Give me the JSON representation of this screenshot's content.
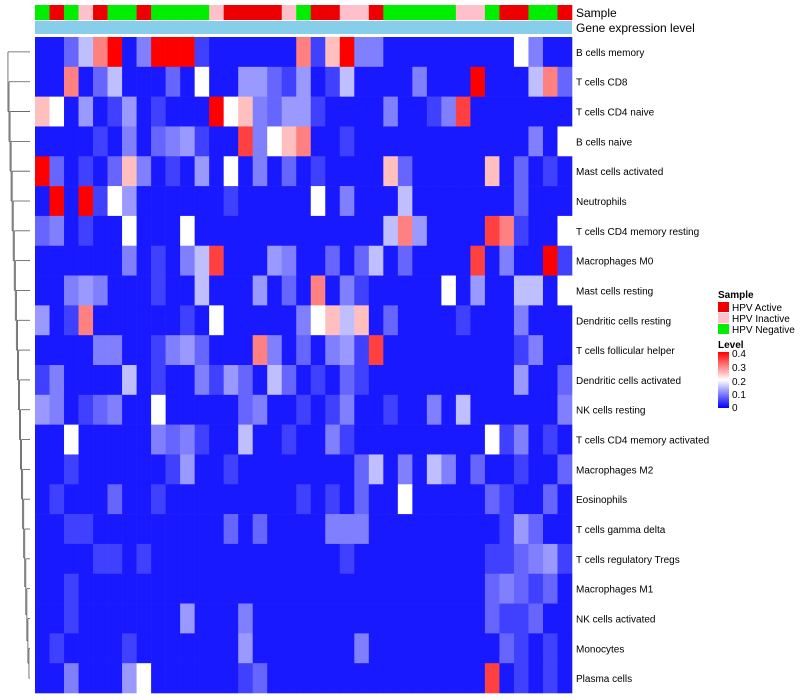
{
  "chart_data": {
    "type": "heatmap",
    "annotation_tracks": [
      "Sample",
      "Gene expression level"
    ],
    "legend": {
      "sample_title": "Sample",
      "sample_entries": [
        {
          "label": "HPV Active",
          "color": "#ee0000"
        },
        {
          "label": "HPV Inactive",
          "color": "#ffc0cb"
        },
        {
          "label": "HPV Negative",
          "color": "#00ee00"
        }
      ],
      "level_title": "Level",
      "level_ticks": [
        "0.4",
        "0.3",
        "0.2",
        "0.1",
        "0"
      ],
      "level_range": [
        0,
        0.4
      ]
    },
    "colors": {
      "low": "#0000ff",
      "mid": "#ffffff",
      "high": "#ff0000",
      "gene_bar": "#87ceeb"
    },
    "sample_groups": [
      2,
      0,
      2,
      1,
      0,
      2,
      2,
      0,
      2,
      2,
      2,
      2,
      1,
      0,
      0,
      0,
      0,
      1,
      2,
      0,
      0,
      1,
      1,
      0,
      2,
      2,
      2,
      2,
      2,
      1,
      1,
      2,
      0,
      0,
      2,
      2,
      0
    ],
    "rows": [
      "B cells memory",
      "T cells CD8",
      "T cells CD4 naive",
      "B cells naive",
      "Mast cells activated",
      "Neutrophils",
      "T cells CD4 memory resting",
      "Macrophages M0",
      "Mast cells resting",
      "Dendritic cells resting",
      "T cells follicular helper",
      "Dendritic cells activated",
      "NK cells resting",
      "T cells CD4 memory activated",
      "Macrophages M2",
      "Eosinophils",
      "T cells gamma delta",
      "T cells regulatory  Tregs",
      "Macrophages M1",
      "NK cells activated",
      "Monocytes",
      "Plasma cells"
    ],
    "values": [
      [
        0.02,
        0.02,
        0.08,
        0.15,
        0.3,
        0.4,
        0.02,
        0.1,
        0.4,
        0.4,
        0.4,
        0.05,
        0.02,
        0.02,
        0.02,
        0.02,
        0.02,
        0.02,
        0.3,
        0.05,
        0.25,
        0.4,
        0.1,
        0.1,
        0.02,
        0.02,
        0.02,
        0.02,
        0.02,
        0.02,
        0.02,
        0.02,
        0.02,
        0.2,
        0.1,
        0.02,
        0.02
      ],
      [
        0.02,
        0.02,
        0.3,
        0.02,
        0.08,
        0.15,
        0.02,
        0.02,
        0.02,
        0.08,
        0.02,
        0.2,
        0.02,
        0.02,
        0.12,
        0.12,
        0.08,
        0.05,
        0.12,
        0.02,
        0.05,
        0.15,
        0.02,
        0.02,
        0.02,
        0.02,
        0.1,
        0.02,
        0.02,
        0.02,
        0.4,
        0.02,
        0.02,
        0.02,
        0.15,
        0.3,
        0.08
      ],
      [
        0.25,
        0.2,
        0.02,
        0.12,
        0.02,
        0.05,
        0.12,
        0.02,
        0.05,
        0.02,
        0.02,
        0.02,
        0.4,
        0.2,
        0.25,
        0.1,
        0.08,
        0.12,
        0.12,
        0.05,
        0.02,
        0.02,
        0.02,
        0.02,
        0.1,
        0.02,
        0.02,
        0.05,
        0.1,
        0.35,
        0.02,
        0.02,
        0.02,
        0.02,
        0.02,
        0.02,
        0.02
      ],
      [
        0.02,
        0.02,
        0.02,
        0.02,
        0.05,
        0.02,
        0.1,
        0.02,
        0.08,
        0.1,
        0.12,
        0.05,
        0.02,
        0.02,
        0.35,
        0.1,
        0.2,
        0.25,
        0.3,
        0.02,
        0.02,
        0.05,
        0.02,
        0.02,
        0.02,
        0.02,
        0.02,
        0.02,
        0.02,
        0.02,
        0.02,
        0.02,
        0.02,
        0.02,
        0.1,
        0.02,
        0.2
      ],
      [
        0.4,
        0.08,
        0.02,
        0.05,
        0.02,
        0.08,
        0.25,
        0.1,
        0.02,
        0.05,
        0.02,
        0.12,
        0.02,
        0.2,
        0.02,
        0.1,
        0.02,
        0.08,
        0.02,
        0.05,
        0.02,
        0.02,
        0.02,
        0.02,
        0.25,
        0.08,
        0.02,
        0.02,
        0.02,
        0.02,
        0.02,
        0.25,
        0.02,
        0.08,
        0.02,
        0.05,
        0.02
      ],
      [
        0.02,
        0.4,
        0.02,
        0.4,
        0.05,
        0.2,
        0.12,
        0.02,
        0.02,
        0.02,
        0.02,
        0.02,
        0.02,
        0.05,
        0.02,
        0.02,
        0.02,
        0.02,
        0.02,
        0.2,
        0.02,
        0.1,
        0.02,
        0.02,
        0.02,
        0.15,
        0.02,
        0.02,
        0.02,
        0.02,
        0.02,
        0.02,
        0.02,
        0.08,
        0.02,
        0.02,
        0.02
      ],
      [
        0.08,
        0.1,
        0.02,
        0.05,
        0.02,
        0.02,
        0.2,
        0.02,
        0.02,
        0.02,
        0.2,
        0.02,
        0.02,
        0.02,
        0.02,
        0.02,
        0.02,
        0.02,
        0.02,
        0.02,
        0.02,
        0.02,
        0.02,
        0.02,
        0.15,
        0.3,
        0.12,
        0.02,
        0.02,
        0.02,
        0.02,
        0.35,
        0.3,
        0.05,
        0.02,
        0.02,
        0.2
      ],
      [
        0.02,
        0.02,
        0.02,
        0.02,
        0.02,
        0.02,
        0.1,
        0.02,
        0.05,
        0.02,
        0.1,
        0.15,
        0.35,
        0.02,
        0.02,
        0.02,
        0.12,
        0.1,
        0.02,
        0.02,
        0.08,
        0.02,
        0.08,
        0.15,
        0.02,
        0.08,
        0.02,
        0.02,
        0.02,
        0.02,
        0.35,
        0.02,
        0.1,
        0.02,
        0.02,
        0.4,
        0.05
      ],
      [
        0.02,
        0.02,
        0.1,
        0.12,
        0.1,
        0.02,
        0.02,
        0.02,
        0.05,
        0.02,
        0.02,
        0.15,
        0.02,
        0.02,
        0.02,
        0.12,
        0.02,
        0.08,
        0.02,
        0.3,
        0.02,
        0.1,
        0.05,
        0.02,
        0.02,
        0.02,
        0.02,
        0.02,
        0.2,
        0.02,
        0.12,
        0.02,
        0.02,
        0.15,
        0.15,
        0.02,
        0.2
      ],
      [
        0.12,
        0.02,
        0.05,
        0.3,
        0.02,
        0.02,
        0.02,
        0.02,
        0.02,
        0.02,
        0.05,
        0.02,
        0.2,
        0.02,
        0.02,
        0.02,
        0.02,
        0.02,
        0.1,
        0.2,
        0.25,
        0.15,
        0.25,
        0.02,
        0.08,
        0.02,
        0.02,
        0.02,
        0.02,
        0.05,
        0.02,
        0.02,
        0.02,
        0.1,
        0.02,
        0.02,
        0.02
      ],
      [
        0.02,
        0.02,
        0.02,
        0.02,
        0.1,
        0.1,
        0.02,
        0.02,
        0.05,
        0.1,
        0.12,
        0.08,
        0.02,
        0.02,
        0.02,
        0.3,
        0.1,
        0.02,
        0.08,
        0.02,
        0.1,
        0.12,
        0.05,
        0.35,
        0.02,
        0.02,
        0.02,
        0.02,
        0.02,
        0.02,
        0.02,
        0.02,
        0.02,
        0.05,
        0.1,
        0.02,
        0.02
      ],
      [
        0.05,
        0.1,
        0.02,
        0.02,
        0.02,
        0.02,
        0.15,
        0.02,
        0.05,
        0.02,
        0.02,
        0.1,
        0.05,
        0.12,
        0.08,
        0.02,
        0.15,
        0.08,
        0.02,
        0.05,
        0.02,
        0.08,
        0.05,
        0.02,
        0.02,
        0.02,
        0.02,
        0.02,
        0.02,
        0.02,
        0.02,
        0.02,
        0.02,
        0.12,
        0.02,
        0.02,
        0.08
      ],
      [
        0.12,
        0.1,
        0.02,
        0.05,
        0.08,
        0.1,
        0.02,
        0.02,
        0.2,
        0.02,
        0.02,
        0.02,
        0.02,
        0.02,
        0.08,
        0.1,
        0.02,
        0.02,
        0.05,
        0.02,
        0.05,
        0.1,
        0.02,
        0.02,
        0.05,
        0.02,
        0.02,
        0.1,
        0.02,
        0.15,
        0.02,
        0.02,
        0.02,
        0.02,
        0.02,
        0.02,
        0.1
      ],
      [
        0.02,
        0.02,
        0.2,
        0.02,
        0.02,
        0.02,
        0.02,
        0.02,
        0.1,
        0.08,
        0.1,
        0.05,
        0.02,
        0.02,
        0.15,
        0.02,
        0.02,
        0.05,
        0.02,
        0.02,
        0.1,
        0.05,
        0.02,
        0.02,
        0.02,
        0.02,
        0.02,
        0.02,
        0.02,
        0.02,
        0.02,
        0.2,
        0.05,
        0.1,
        0.02,
        0.05,
        0.02
      ],
      [
        0.02,
        0.02,
        0.05,
        0.02,
        0.02,
        0.02,
        0.02,
        0.02,
        0.02,
        0.05,
        0.12,
        0.02,
        0.02,
        0.05,
        0.02,
        0.02,
        0.02,
        0.02,
        0.02,
        0.02,
        0.02,
        0.02,
        0.08,
        0.15,
        0.02,
        0.1,
        0.02,
        0.15,
        0.1,
        0.02,
        0.08,
        0.02,
        0.02,
        0.05,
        0.02,
        0.02,
        0.08
      ],
      [
        0.02,
        0.05,
        0.02,
        0.02,
        0.02,
        0.08,
        0.02,
        0.02,
        0.05,
        0.02,
        0.02,
        0.02,
        0.02,
        0.02,
        0.02,
        0.02,
        0.02,
        0.02,
        0.05,
        0.02,
        0.05,
        0.02,
        0.08,
        0.02,
        0.02,
        0.2,
        0.02,
        0.02,
        0.02,
        0.02,
        0.02,
        0.08,
        0.05,
        0.02,
        0.02,
        0.08,
        0.02
      ],
      [
        0.02,
        0.02,
        0.05,
        0.05,
        0.02,
        0.02,
        0.02,
        0.02,
        0.02,
        0.02,
        0.02,
        0.02,
        0.02,
        0.08,
        0.02,
        0.08,
        0.02,
        0.02,
        0.02,
        0.02,
        0.1,
        0.1,
        0.1,
        0.02,
        0.02,
        0.02,
        0.02,
        0.02,
        0.02,
        0.02,
        0.02,
        0.02,
        0.05,
        0.12,
        0.08,
        0.02,
        0.02
      ],
      [
        0.02,
        0.02,
        0.02,
        0.02,
        0.05,
        0.05,
        0.02,
        0.05,
        0.02,
        0.02,
        0.02,
        0.02,
        0.02,
        0.02,
        0.02,
        0.02,
        0.02,
        0.02,
        0.02,
        0.02,
        0.02,
        0.05,
        0.02,
        0.02,
        0.02,
        0.02,
        0.02,
        0.02,
        0.02,
        0.02,
        0.02,
        0.05,
        0.05,
        0.08,
        0.1,
        0.12,
        0.05
      ],
      [
        0.02,
        0.02,
        0.05,
        0.02,
        0.02,
        0.02,
        0.02,
        0.02,
        0.02,
        0.02,
        0.02,
        0.02,
        0.02,
        0.02,
        0.02,
        0.02,
        0.02,
        0.02,
        0.02,
        0.02,
        0.02,
        0.02,
        0.02,
        0.02,
        0.02,
        0.02,
        0.02,
        0.02,
        0.02,
        0.02,
        0.02,
        0.08,
        0.1,
        0.08,
        0.05,
        0.08,
        0.02
      ],
      [
        0.02,
        0.02,
        0.05,
        0.02,
        0.02,
        0.02,
        0.02,
        0.02,
        0.02,
        0.02,
        0.12,
        0.02,
        0.02,
        0.02,
        0.1,
        0.02,
        0.02,
        0.02,
        0.02,
        0.02,
        0.02,
        0.02,
        0.02,
        0.02,
        0.02,
        0.02,
        0.02,
        0.02,
        0.02,
        0.02,
        0.02,
        0.08,
        0.05,
        0.05,
        0.08,
        0.02,
        0.02
      ],
      [
        0.02,
        0.05,
        0.02,
        0.02,
        0.02,
        0.02,
        0.05,
        0.02,
        0.02,
        0.02,
        0.02,
        0.02,
        0.02,
        0.02,
        0.12,
        0.02,
        0.02,
        0.02,
        0.02,
        0.02,
        0.02,
        0.02,
        0.1,
        0.02,
        0.02,
        0.02,
        0.02,
        0.02,
        0.02,
        0.02,
        0.02,
        0.02,
        0.08,
        0.05,
        0.02,
        0.05,
        0.02
      ],
      [
        0.02,
        0.02,
        0.1,
        0.02,
        0.02,
        0.02,
        0.12,
        0.2,
        0.02,
        0.02,
        0.02,
        0.02,
        0.02,
        0.02,
        0.05,
        0.08,
        0.02,
        0.02,
        0.02,
        0.02,
        0.02,
        0.02,
        0.02,
        0.02,
        0.02,
        0.02,
        0.02,
        0.02,
        0.02,
        0.02,
        0.02,
        0.35,
        0.02,
        0.05,
        0.02,
        0.05,
        0.02
      ]
    ]
  }
}
